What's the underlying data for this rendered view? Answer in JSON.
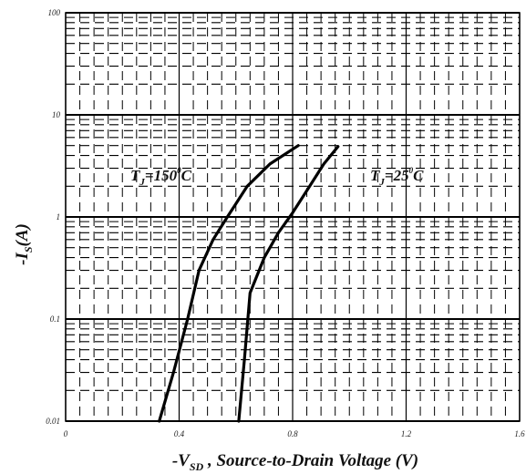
{
  "chart_data": {
    "type": "line",
    "title": "",
    "xlabel": "-V_SD , Source-to-Drain Voltage (V)",
    "ylabel": "-I_S(A)",
    "x_scale": "linear",
    "y_scale": "log",
    "xlim": [
      0,
      1.6
    ],
    "ylim": [
      0.01,
      100
    ],
    "x_ticks": [
      "0",
      "0.4",
      "0.8",
      "1.2",
      "1.6"
    ],
    "y_ticks": [
      "0.01",
      "0.1",
      "1",
      "10",
      "100"
    ],
    "grid": true,
    "grid_style": "dashed minor gridlines, solid decade lines",
    "series": [
      {
        "name": "T_J=150°C",
        "x": [
          0.33,
          0.38,
          0.43,
          0.47,
          0.52,
          0.57,
          0.64,
          0.72,
          0.82
        ],
        "y": [
          0.01,
          0.03,
          0.1,
          0.3,
          0.6,
          1.0,
          2.0,
          3.3,
          5.0
        ]
      },
      {
        "name": "T_J=25°C",
        "x": [
          0.61,
          0.63,
          0.65,
          0.7,
          0.75,
          0.8,
          0.86,
          0.91,
          0.96
        ],
        "y": [
          0.01,
          0.04,
          0.18,
          0.4,
          0.7,
          1.1,
          2.0,
          3.3,
          4.9
        ]
      }
    ],
    "annotations": {
      "label_150": {
        "T": "T",
        "sub": "J",
        "rest": "=150",
        "sup": "0",
        "unit": "C"
      },
      "label_25": {
        "T": "T",
        "sub": "J",
        "rest": "=25",
        "sup": "0",
        "unit": "C"
      }
    }
  },
  "axis_title_x": {
    "prefix": "-V",
    "sub": "SD",
    "suffix": " , Source-to-Drain Voltage (V)"
  },
  "axis_title_y": {
    "prefix": "-I",
    "sub": "S",
    "suffix": "(A)"
  }
}
